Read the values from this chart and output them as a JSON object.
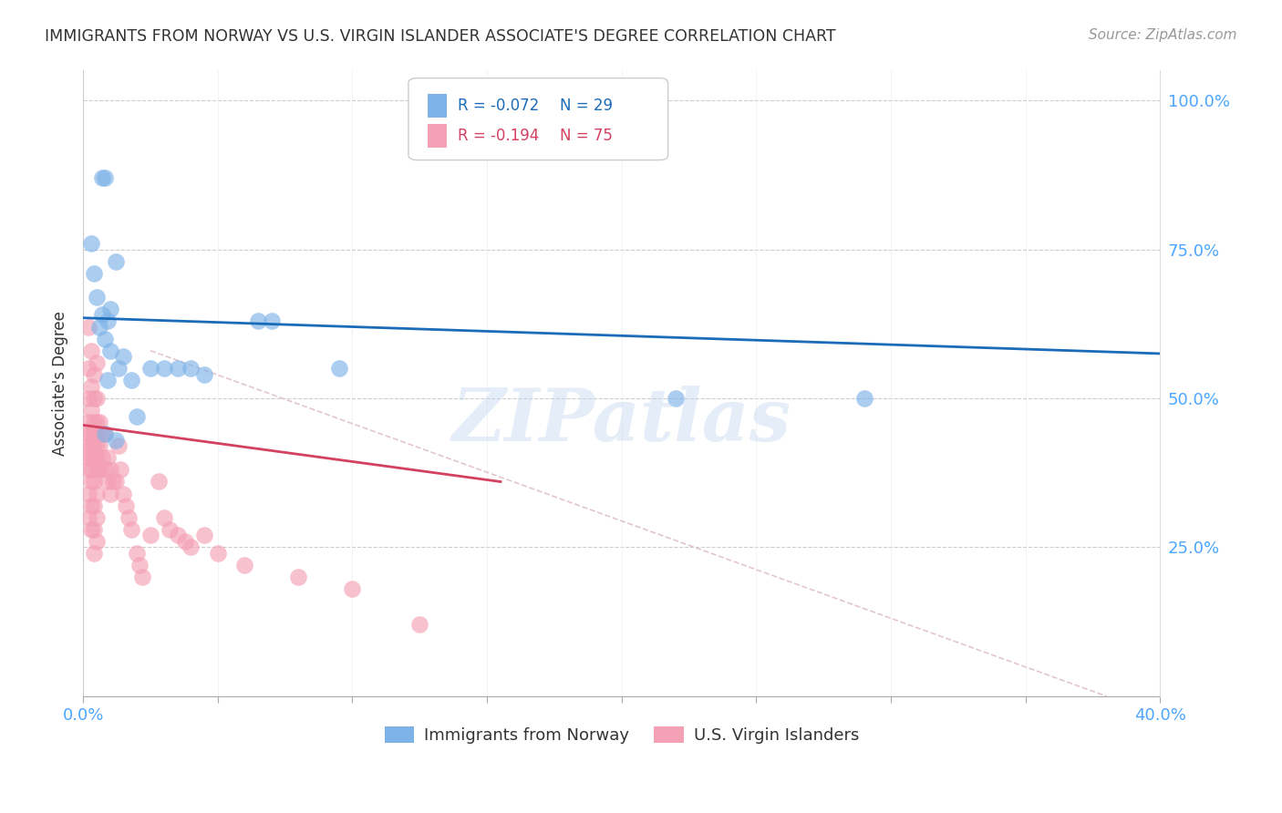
{
  "title": "IMMIGRANTS FROM NORWAY VS U.S. VIRGIN ISLANDER ASSOCIATE'S DEGREE CORRELATION CHART",
  "source": "Source: ZipAtlas.com",
  "ylabel": "Associate's Degree",
  "xlim": [
    0.0,
    0.4
  ],
  "ylim": [
    0.0,
    1.05
  ],
  "legend_r_blue": "-0.072",
  "legend_n_blue": "29",
  "legend_r_pink": "-0.194",
  "legend_n_pink": "75",
  "blue_color": "#7EB3E8",
  "pink_color": "#F4A0B5",
  "blue_line_color": "#1A6BB8",
  "pink_line_color": "#D44060",
  "dashed_line_color": "#E0C0C8",
  "watermark": "ZIPatlas",
  "blue_line_x0": 0.0,
  "blue_line_y0": 0.635,
  "blue_line_x1": 0.4,
  "blue_line_y1": 0.575,
  "pink_line_x0": 0.0,
  "pink_line_y0": 0.455,
  "pink_line_x1": 0.155,
  "pink_line_y1": 0.36,
  "dash_line_x0": 0.025,
  "dash_line_y0": 0.58,
  "dash_line_x1": 0.38,
  "dash_line_y1": 0.0,
  "blue_scatter_x": [
    0.008,
    0.007,
    0.003,
    0.004,
    0.005,
    0.007,
    0.009,
    0.006,
    0.008,
    0.01,
    0.01,
    0.012,
    0.013,
    0.015,
    0.018,
    0.008,
    0.009,
    0.065,
    0.03,
    0.035,
    0.04,
    0.045,
    0.07,
    0.095,
    0.22,
    0.29,
    0.012,
    0.02,
    0.025
  ],
  "blue_scatter_y": [
    0.87,
    0.87,
    0.76,
    0.71,
    0.67,
    0.64,
    0.63,
    0.62,
    0.6,
    0.65,
    0.58,
    0.73,
    0.55,
    0.57,
    0.53,
    0.44,
    0.53,
    0.63,
    0.55,
    0.55,
    0.55,
    0.54,
    0.63,
    0.55,
    0.5,
    0.5,
    0.43,
    0.47,
    0.55
  ],
  "pink_scatter_x": [
    0.002,
    0.002,
    0.002,
    0.002,
    0.002,
    0.002,
    0.002,
    0.002,
    0.002,
    0.002,
    0.003,
    0.003,
    0.003,
    0.003,
    0.003,
    0.003,
    0.003,
    0.003,
    0.003,
    0.003,
    0.004,
    0.004,
    0.004,
    0.004,
    0.004,
    0.004,
    0.004,
    0.004,
    0.004,
    0.004,
    0.005,
    0.005,
    0.005,
    0.005,
    0.005,
    0.005,
    0.005,
    0.005,
    0.005,
    0.005,
    0.006,
    0.006,
    0.006,
    0.007,
    0.007,
    0.008,
    0.008,
    0.009,
    0.009,
    0.01,
    0.01,
    0.011,
    0.012,
    0.013,
    0.014,
    0.015,
    0.016,
    0.017,
    0.018,
    0.02,
    0.021,
    0.022,
    0.025,
    0.028,
    0.03,
    0.032,
    0.035,
    0.038,
    0.04,
    0.045,
    0.05,
    0.06,
    0.08,
    0.1,
    0.125
  ],
  "pink_scatter_y": [
    0.62,
    0.55,
    0.5,
    0.46,
    0.44,
    0.42,
    0.4,
    0.38,
    0.34,
    0.3,
    0.58,
    0.52,
    0.48,
    0.44,
    0.42,
    0.4,
    0.38,
    0.36,
    0.32,
    0.28,
    0.54,
    0.5,
    0.46,
    0.44,
    0.42,
    0.4,
    0.36,
    0.32,
    0.28,
    0.24,
    0.56,
    0.5,
    0.46,
    0.44,
    0.42,
    0.4,
    0.38,
    0.34,
    0.3,
    0.26,
    0.46,
    0.42,
    0.38,
    0.44,
    0.4,
    0.44,
    0.38,
    0.4,
    0.36,
    0.38,
    0.34,
    0.36,
    0.36,
    0.42,
    0.38,
    0.34,
    0.32,
    0.3,
    0.28,
    0.24,
    0.22,
    0.2,
    0.27,
    0.36,
    0.3,
    0.28,
    0.27,
    0.26,
    0.25,
    0.27,
    0.24,
    0.22,
    0.2,
    0.18,
    0.12
  ]
}
